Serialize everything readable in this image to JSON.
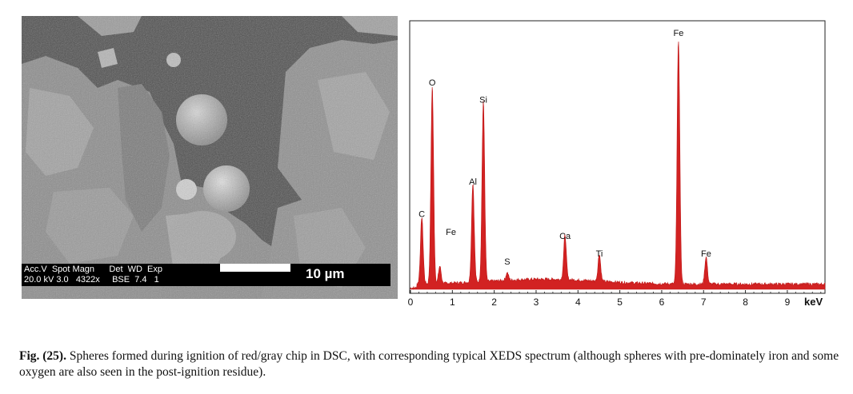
{
  "sem": {
    "info_row1": "Acc.V  Spot Magn      Det  WD  Exp",
    "info_row2": "20.0 kV 3.0   4322x     BSE  7.4   1",
    "scale_label": "10 µm"
  },
  "chart_data": {
    "type": "line",
    "xlabel": "keV",
    "xlim": [
      0,
      9.9
    ],
    "x_ticks": [
      "0",
      "1",
      "2",
      "3",
      "4",
      "5",
      "6",
      "7",
      "8",
      "9"
    ],
    "ylim": [
      0,
      1.0
    ],
    "color": "#d22222",
    "peaks": [
      {
        "label": "C",
        "x": 0.27,
        "y": 0.27
      },
      {
        "label": "O",
        "x": 0.52,
        "y": 0.8
      },
      {
        "label": "Fe",
        "x": 0.7,
        "y": 0.07
      },
      {
        "label": "Al",
        "x": 1.49,
        "y": 0.4
      },
      {
        "label": "Si",
        "x": 1.74,
        "y": 0.73
      },
      {
        "label": "S",
        "x": 2.31,
        "y": 0.03
      },
      {
        "label": "Ca",
        "x": 3.69,
        "y": 0.18
      },
      {
        "label": "Ti",
        "x": 4.51,
        "y": 0.11
      },
      {
        "label": "Fe",
        "x": 6.4,
        "y": 1.0
      },
      {
        "label": "Fe",
        "x": 7.06,
        "y": 0.11
      }
    ]
  },
  "caption": {
    "label": "Fig. (25).",
    "text": " Spheres formed during ignition of red/gray chip in DSC, with corresponding typical XEDS spectrum (although spheres with pre-dominately iron and some oxygen are also seen in the post-ignition residue)."
  }
}
